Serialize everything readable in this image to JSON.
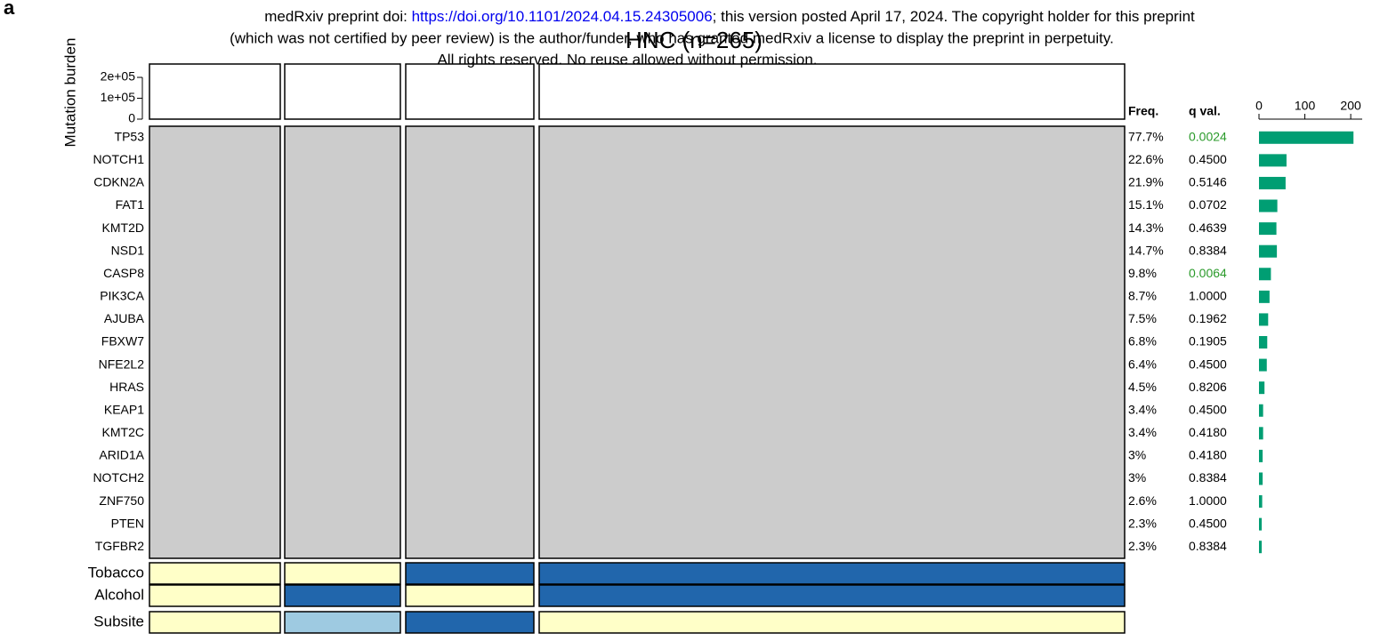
{
  "header": {
    "line1_pre": "medRxiv preprint doi: ",
    "link": "https://doi.org/10.1101/2024.04.15.24305006",
    "line1_post": "; this version posted April 17, 2024. The copyright holder for this preprint",
    "line2": "(which was not certified by peer review) is the author/funder, who has granted medRxiv a license to display the preprint in perpetuity.",
    "line3": "All rights reserved. No reuse allowed without permission."
  },
  "panel_label": "a",
  "chart_data": {
    "type": "oncoprint",
    "title": "HNC (n=265)",
    "burden": {
      "ylabel": "Mutation burden",
      "ylim": [
        0,
        264000
      ],
      "yticks": [
        0,
        {
          "value": 100000,
          "label": "1e+05"
        },
        {
          "value": 200000,
          "label": "2e+05"
        }
      ]
    },
    "freq_header": "Freq.",
    "q_header": "q val.",
    "count_axis": {
      "xlim": [
        0,
        225
      ],
      "xticks": [
        0,
        100,
        200
      ],
      "color": "#009e73"
    },
    "rows": [
      {
        "gene": "TP53",
        "freq": "77.7%",
        "q": "0.0024",
        "q_color": "#2a9a2a",
        "count": 206
      },
      {
        "gene": "NOTCH1",
        "freq": "22.6%",
        "q": "0.4500",
        "q_color": "#000000",
        "count": 60
      },
      {
        "gene": "CDKN2A",
        "freq": "21.9%",
        "q": "0.5146",
        "q_color": "#000000",
        "count": 58
      },
      {
        "gene": "FAT1",
        "freq": "15.1%",
        "q": "0.0702",
        "q_color": "#000000",
        "count": 40
      },
      {
        "gene": "KMT2D",
        "freq": "14.3%",
        "q": "0.4639",
        "q_color": "#000000",
        "count": 38
      },
      {
        "gene": "NSD1",
        "freq": "14.7%",
        "q": "0.8384",
        "q_color": "#000000",
        "count": 39
      },
      {
        "gene": "CASP8",
        "freq": "9.8%",
        "q": "0.0064",
        "q_color": "#2a9a2a",
        "count": 26
      },
      {
        "gene": "PIK3CA",
        "freq": "8.7%",
        "q": "1.0000",
        "q_color": "#000000",
        "count": 23
      },
      {
        "gene": "AJUBA",
        "freq": "7.5%",
        "q": "0.1962",
        "q_color": "#000000",
        "count": 20
      },
      {
        "gene": "FBXW7",
        "freq": "6.8%",
        "q": "0.1905",
        "q_color": "#000000",
        "count": 18
      },
      {
        "gene": "NFE2L2",
        "freq": "6.4%",
        "q": "0.4500",
        "q_color": "#000000",
        "count": 17
      },
      {
        "gene": "HRAS",
        "freq": "4.5%",
        "q": "0.8206",
        "q_color": "#000000",
        "count": 12
      },
      {
        "gene": "KEAP1",
        "freq": "3.4%",
        "q": "0.4500",
        "q_color": "#000000",
        "count": 9
      },
      {
        "gene": "KMT2C",
        "freq": "3.4%",
        "q": "0.4180",
        "q_color": "#000000",
        "count": 9
      },
      {
        "gene": "ARID1A",
        "freq": "3%",
        "q": "0.4180",
        "q_color": "#000000",
        "count": 8
      },
      {
        "gene": "NOTCH2",
        "freq": "3%",
        "q": "0.8384",
        "q_color": "#000000",
        "count": 8
      },
      {
        "gene": "ZNF750",
        "freq": "2.6%",
        "q": "1.0000",
        "q_color": "#000000",
        "count": 7
      },
      {
        "gene": "PTEN",
        "freq": "2.3%",
        "q": "0.4500",
        "q_color": "#000000",
        "count": 6
      },
      {
        "gene": "TGFBR2",
        "freq": "2.3%",
        "q": "0.8384",
        "q_color": "#000000",
        "count": 6
      }
    ],
    "tracks": [
      "Tobacco",
      "Alcohol",
      "Subsite"
    ]
  }
}
